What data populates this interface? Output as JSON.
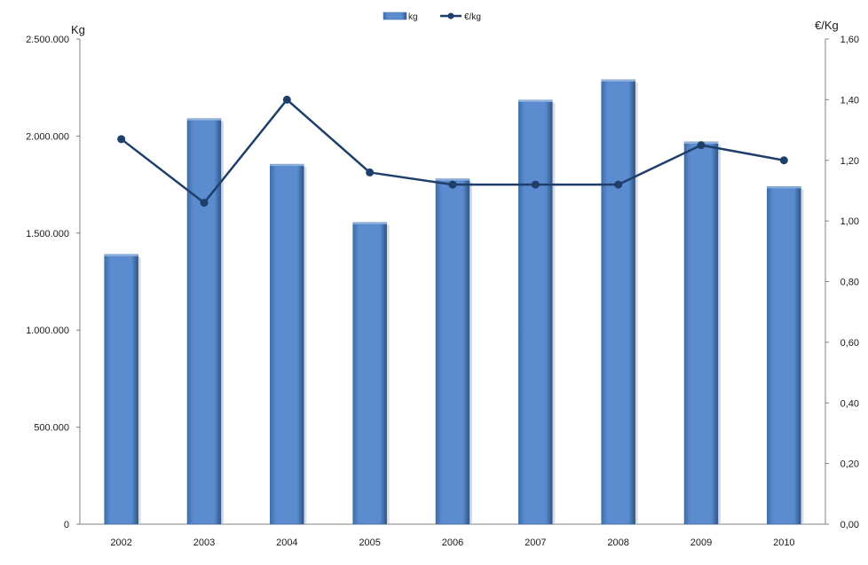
{
  "chart_data": {
    "type": "bar",
    "categories": [
      "2002",
      "2003",
      "2004",
      "2005",
      "2006",
      "2007",
      "2008",
      "2009",
      "2010"
    ],
    "series": [
      {
        "name": "kg",
        "type": "bar",
        "axis": "left",
        "values": [
          1390000,
          2090000,
          1855000,
          1555000,
          1780000,
          2185000,
          2290000,
          1970000,
          1740000
        ],
        "color": "#5B8CCF"
      },
      {
        "name": "€/kg",
        "type": "line",
        "axis": "right",
        "values": [
          1.27,
          1.06,
          1.4,
          1.16,
          1.12,
          1.12,
          1.12,
          1.25,
          1.2
        ],
        "color": "#1F3F6B"
      }
    ],
    "ylabel_left": "Kg",
    "ylabel_right": "€/Kg",
    "ylim_left": [
      0,
      2500000
    ],
    "ylim_right": [
      0,
      1.6
    ],
    "yticks_left": [
      "0",
      "500.000",
      "1.000.000",
      "1.500.000",
      "2.000.000",
      "2.500.000"
    ],
    "yticks_right": [
      "0,00",
      "0,20",
      "0,40",
      "0,60",
      "0,80",
      "1,00",
      "1,20",
      "1,40",
      "1,60"
    ],
    "grid": false,
    "legend_position": "top-center"
  }
}
